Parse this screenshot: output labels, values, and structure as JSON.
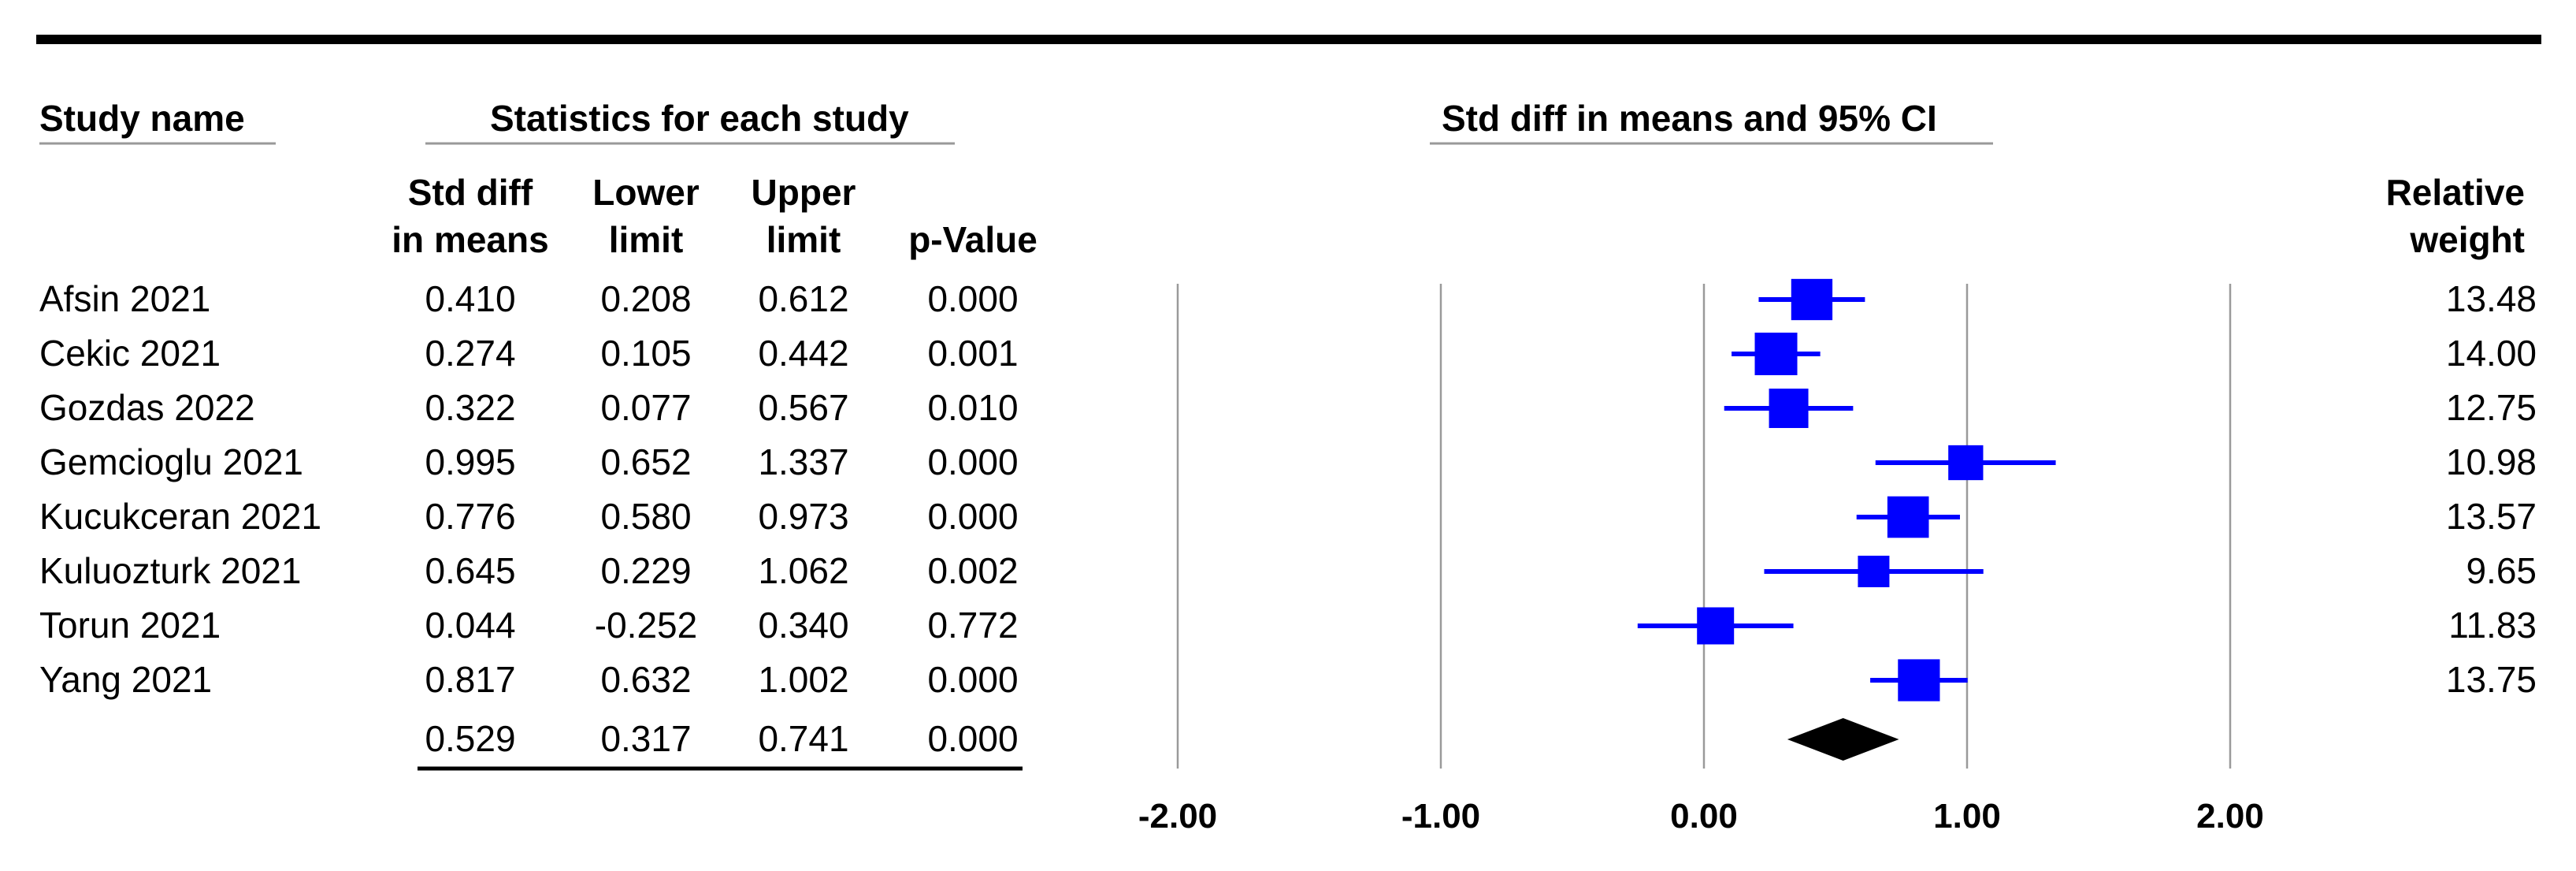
{
  "headers": {
    "study_name": "Study name",
    "stats_group": "Statistics for each study",
    "plot_group": "Std diff in means and 95% CI",
    "col_std_diff": [
      "Std diff",
      "in means"
    ],
    "col_lower": [
      "Lower",
      "limit"
    ],
    "col_upper": [
      "Upper",
      "limit"
    ],
    "col_p": "p-Value",
    "col_weight": [
      "Relative",
      "weight"
    ]
  },
  "chart_data": {
    "type": "forest",
    "title": "Std diff in means and 95% CI",
    "xlim": [
      -2,
      2
    ],
    "ticks": [
      -2,
      -1,
      0,
      1,
      2
    ],
    "tick_labels": [
      "-2.00",
      "-1.00",
      "0.00",
      "1.00",
      "2.00"
    ],
    "grid": true,
    "studies": [
      {
        "name": "Afsin 2021",
        "std_diff": "0.410",
        "lower": "0.208",
        "upper": "0.612",
        "p": "0.000",
        "weight": "13.48"
      },
      {
        "name": "Cekic 2021",
        "std_diff": "0.274",
        "lower": "0.105",
        "upper": "0.442",
        "p": "0.001",
        "weight": "14.00"
      },
      {
        "name": "Gozdas 2022",
        "std_diff": "0.322",
        "lower": "0.077",
        "upper": "0.567",
        "p": "0.010",
        "weight": "12.75"
      },
      {
        "name": "Gemcioglu 2021",
        "std_diff": "0.995",
        "lower": "0.652",
        "upper": "1.337",
        "p": "0.000",
        "weight": "10.98"
      },
      {
        "name": "Kucukceran 2021",
        "std_diff": "0.776",
        "lower": "0.580",
        "upper": "0.973",
        "p": "0.000",
        "weight": "13.57"
      },
      {
        "name": "Kuluozturk 2021",
        "std_diff": "0.645",
        "lower": "0.229",
        "upper": "1.062",
        "p": "0.002",
        "weight": "9.65"
      },
      {
        "name": "Torun 2021",
        "std_diff": "0.044",
        "lower": "-0.252",
        "upper": "0.340",
        "p": "0.772",
        "weight": "11.83"
      },
      {
        "name": "Yang 2021",
        "std_diff": "0.817",
        "lower": "0.632",
        "upper": "1.002",
        "p": "0.000",
        "weight": "13.75"
      }
    ],
    "pooled": {
      "std_diff": "0.529",
      "lower": "0.317",
      "upper": "0.741",
      "p": "0.000"
    },
    "study_color": "#0000ff",
    "pooled_color": "#000000"
  }
}
